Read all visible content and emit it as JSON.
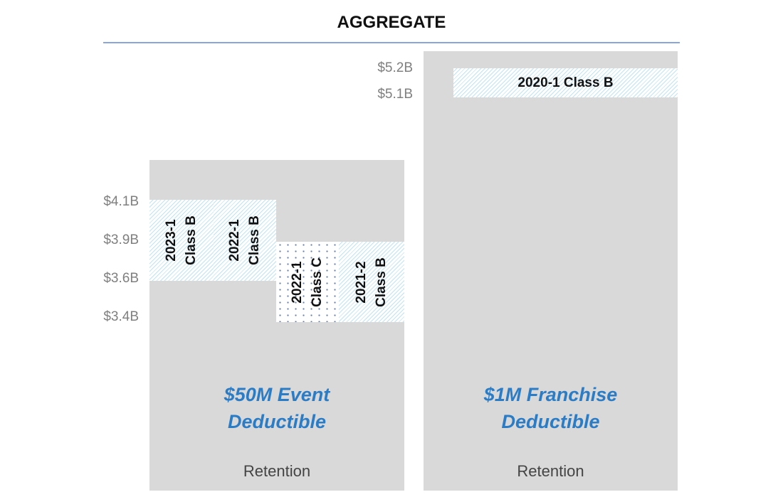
{
  "title": "AGGREGATE",
  "left": {
    "ticks": [
      "$4.1B",
      "$3.9B",
      "$3.6B",
      "$3.4B"
    ],
    "layers": [
      {
        "line1": "2023-1",
        "line2": "Class B",
        "pattern": "hatch"
      },
      {
        "line1": "2022-1",
        "line2": "Class B",
        "pattern": "hatch"
      },
      {
        "line1": "2022-1",
        "line2": "Class C",
        "pattern": "dots"
      },
      {
        "line1": "2021-2",
        "line2": "Class B",
        "pattern": "hatch"
      }
    ],
    "deductible_line1": "$50M Event",
    "deductible_line2": "Deductible",
    "retention": "Retention"
  },
  "right": {
    "ticks": [
      "$5.2B",
      "$5.1B"
    ],
    "layer": "2020-1 Class B",
    "deductible_line1": "$1M Franchise",
    "deductible_line2": "Deductible",
    "retention": "Retention"
  },
  "colors": {
    "accent_text": "#2b7cc6",
    "hatch": "#bfe3f5",
    "retention_fill": "#d9d9d9",
    "rule": "#8aa4dc"
  }
}
